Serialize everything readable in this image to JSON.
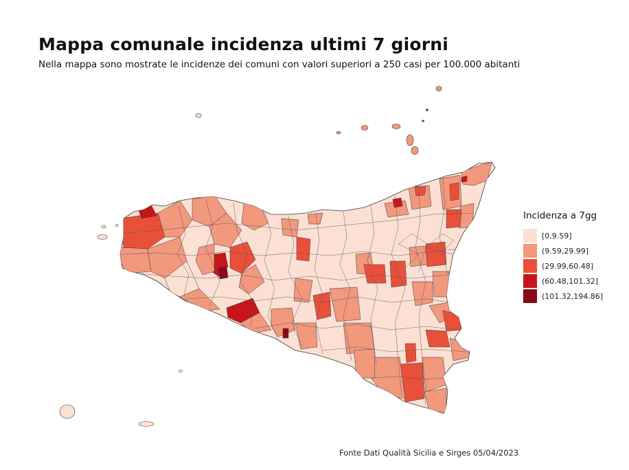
{
  "title": "Mappa comunale incidenza ultimi 7 giorni",
  "subtitle": "Nella mappa sono mostrate le incidenze dei comuni con valori superiori a 250 casi per 100.000 abitanti",
  "source": "Fonte Dati Qualità Sicilia e Sirges 05/04/2023",
  "legend": {
    "title": "Incidenza a 7gg",
    "placement": "right",
    "items": [
      {
        "label": "[0,9.59]",
        "color": "#fbe0d3"
      },
      {
        "label": "(9.59,29.99]",
        "color": "#f1987d"
      },
      {
        "label": "(29.99,60.48]",
        "color": "#e9503a"
      },
      {
        "label": "(60.48,101.32]",
        "color": "#c8151c"
      },
      {
        "label": "(101.32,194.86]",
        "color": "#8a0818"
      }
    ]
  },
  "colors": {
    "border": "#3a3a3a",
    "background": "#ffffff"
  }
}
